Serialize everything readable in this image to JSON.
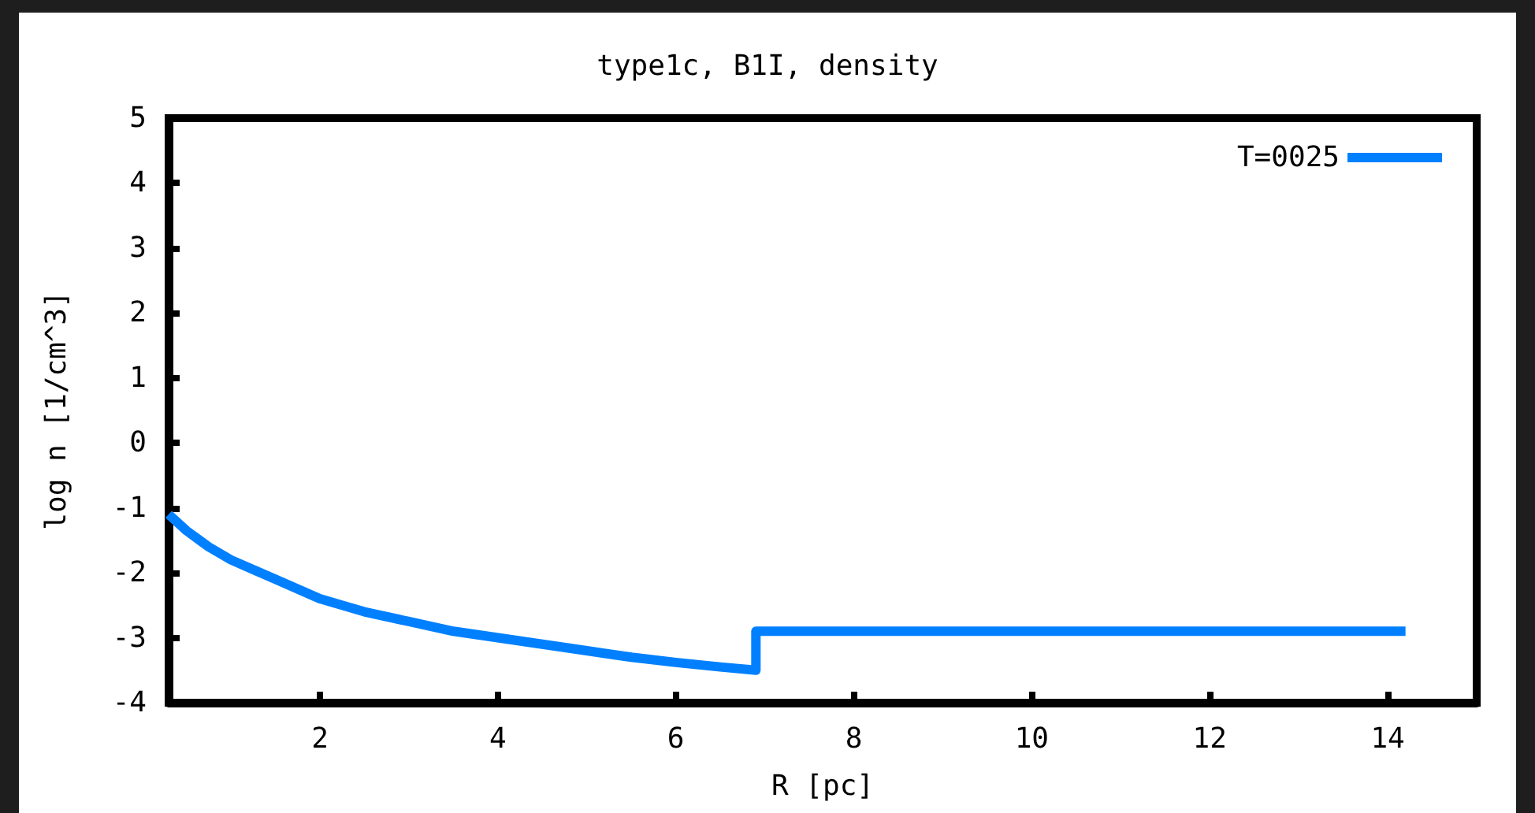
{
  "chart_data": {
    "type": "line",
    "title": "type1c, B1I, density",
    "xlabel": "R [pc]",
    "ylabel": "log n [1/cm^3]",
    "xlim": [
      0.3,
      15
    ],
    "xticks": [
      2,
      4,
      6,
      8,
      10,
      12,
      14
    ],
    "ylim": [
      -4,
      5
    ],
    "yticks": [
      -4,
      -3,
      -2,
      -1,
      0,
      1,
      2,
      3,
      4,
      5
    ],
    "grid": false,
    "legend": "top right",
    "marker": "none",
    "line_style": "solid",
    "series": [
      {
        "name": "T=0025",
        "color": "#0080ff",
        "x": [
          0.3,
          0.5,
          0.75,
          1,
          1.25,
          1.5,
          2,
          2.5,
          3,
          3.5,
          4,
          4.5,
          5,
          5.5,
          6,
          6.5,
          6.9,
          6.9,
          8,
          10,
          12,
          14.2
        ],
        "values": [
          -1.1,
          -1.35,
          -1.6,
          -1.8,
          -1.95,
          -2.1,
          -2.4,
          -2.6,
          -2.75,
          -2.9,
          -3.0,
          -3.1,
          -3.2,
          -3.3,
          -3.38,
          -3.45,
          -3.5,
          -2.9,
          -2.9,
          -2.9,
          -2.9,
          -2.9
        ]
      }
    ]
  }
}
